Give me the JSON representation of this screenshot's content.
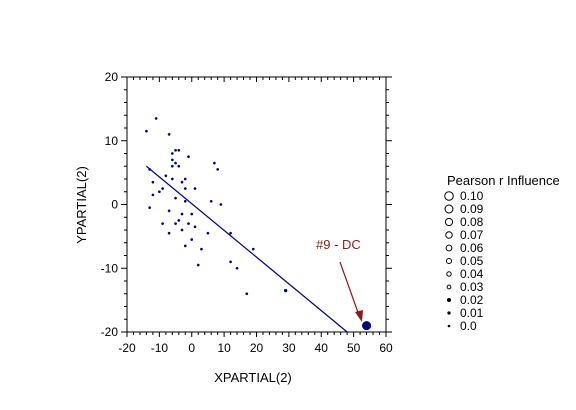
{
  "chart_data": {
    "type": "scatter",
    "title": "",
    "xlabel": "XPARTIAL(2)",
    "ylabel": "YPARTIAL(2)",
    "xlim": [
      -20,
      60
    ],
    "ylim": [
      -20,
      20
    ],
    "x_ticks": [
      -20,
      -10,
      0,
      10,
      20,
      30,
      40,
      50,
      60
    ],
    "y_ticks": [
      -20,
      -10,
      0,
      10,
      20
    ],
    "x_tick_labels": [
      "-20",
      "-10",
      "0",
      "10",
      "20",
      "30",
      "40",
      "50",
      "60"
    ],
    "y_tick_labels": [
      "-20",
      "-10",
      "0",
      "10",
      "20"
    ],
    "grid": false,
    "point_color": "#00008b",
    "series": [
      {
        "points": [
          {
            "x": -14,
            "y": 11.5,
            "r": 0.01
          },
          {
            "x": -11,
            "y": 13.5,
            "r": 0.01
          },
          {
            "x": -7,
            "y": 11,
            "r": 0.01
          },
          {
            "x": -6,
            "y": 8,
            "r": 0.01
          },
          {
            "x": -5,
            "y": 8.5,
            "r": 0.01
          },
          {
            "x": -4,
            "y": 8.5,
            "r": 0.01
          },
          {
            "x": -1,
            "y": 7.5,
            "r": 0.01
          },
          {
            "x": -6,
            "y": 7,
            "r": 0.01
          },
          {
            "x": -5,
            "y": 6.5,
            "r": 0.01
          },
          {
            "x": -6,
            "y": 6,
            "r": 0.01
          },
          {
            "x": -13,
            "y": 5.5,
            "r": 0.01
          },
          {
            "x": -4,
            "y": 6,
            "r": 0.01
          },
          {
            "x": 7,
            "y": 6.5,
            "r": 0.01
          },
          {
            "x": 8,
            "y": 5.5,
            "r": 0.01
          },
          {
            "x": -8,
            "y": 4.5,
            "r": 0.01
          },
          {
            "x": -6,
            "y": 4,
            "r": 0.01
          },
          {
            "x": -3,
            "y": 3.5,
            "r": 0.01
          },
          {
            "x": -2,
            "y": 4,
            "r": 0.01
          },
          {
            "x": -12,
            "y": 3.5,
            "r": 0.01
          },
          {
            "x": -9,
            "y": 2.5,
            "r": 0.01
          },
          {
            "x": -10,
            "y": 2,
            "r": 0.01
          },
          {
            "x": -2,
            "y": 2.5,
            "r": 0.01
          },
          {
            "x": 1,
            "y": 2.5,
            "r": 0.01
          },
          {
            "x": -12,
            "y": 1.5,
            "r": 0.01
          },
          {
            "x": -5,
            "y": 1,
            "r": 0.01
          },
          {
            "x": -2,
            "y": 0.5,
            "r": 0.01
          },
          {
            "x": 6,
            "y": 0.5,
            "r": 0.01
          },
          {
            "x": 9,
            "y": 0,
            "r": 0.01
          },
          {
            "x": -13,
            "y": -0.5,
            "r": 0.01
          },
          {
            "x": -7,
            "y": -1,
            "r": 0.01
          },
          {
            "x": -3,
            "y": -1.5,
            "r": 0.01
          },
          {
            "x": 0,
            "y": -1.5,
            "r": 0.01
          },
          {
            "x": -4,
            "y": -2.5,
            "r": 0.01
          },
          {
            "x": -1,
            "y": -3,
            "r": 0.01
          },
          {
            "x": 1,
            "y": -3.5,
            "r": 0.01
          },
          {
            "x": -5,
            "y": -3,
            "r": 0.01
          },
          {
            "x": -9,
            "y": -3,
            "r": 0.01
          },
          {
            "x": -3,
            "y": -4,
            "r": 0.01
          },
          {
            "x": -7,
            "y": -4.5,
            "r": 0.01
          },
          {
            "x": 0,
            "y": -5.5,
            "r": 0.01
          },
          {
            "x": 5,
            "y": -4.5,
            "r": 0.01
          },
          {
            "x": -2,
            "y": -6.5,
            "r": 0.01
          },
          {
            "x": 12,
            "y": -4.5,
            "r": 0.01
          },
          {
            "x": 3,
            "y": -7,
            "r": 0.01
          },
          {
            "x": 19,
            "y": -7,
            "r": 0.01
          },
          {
            "x": 2,
            "y": -9.5,
            "r": 0.01
          },
          {
            "x": 12,
            "y": -9,
            "r": 0.01
          },
          {
            "x": 14,
            "y": -10,
            "r": 0.01
          },
          {
            "x": 17,
            "y": -14,
            "r": 0.01
          },
          {
            "x": 29,
            "y": -13.5,
            "r": 0.02
          },
          {
            "x": 54,
            "y": -19,
            "r": 0.1
          }
        ]
      }
    ],
    "regression_line": {
      "x": [
        -14,
        48
      ],
      "y": [
        6,
        -20
      ]
    },
    "annotation": {
      "text": "#9 - DC",
      "color": "#8b1a1a",
      "point": {
        "x": 54,
        "y": -19
      }
    },
    "legend": {
      "title": "Pearson r Influence",
      "placement": "right",
      "entries": [
        "0.10",
        "0.09",
        "0.08",
        "0.07",
        "0.06",
        "0.05",
        "0.04",
        "0.03",
        "0.02",
        "0.01",
        "0.0"
      ]
    }
  }
}
